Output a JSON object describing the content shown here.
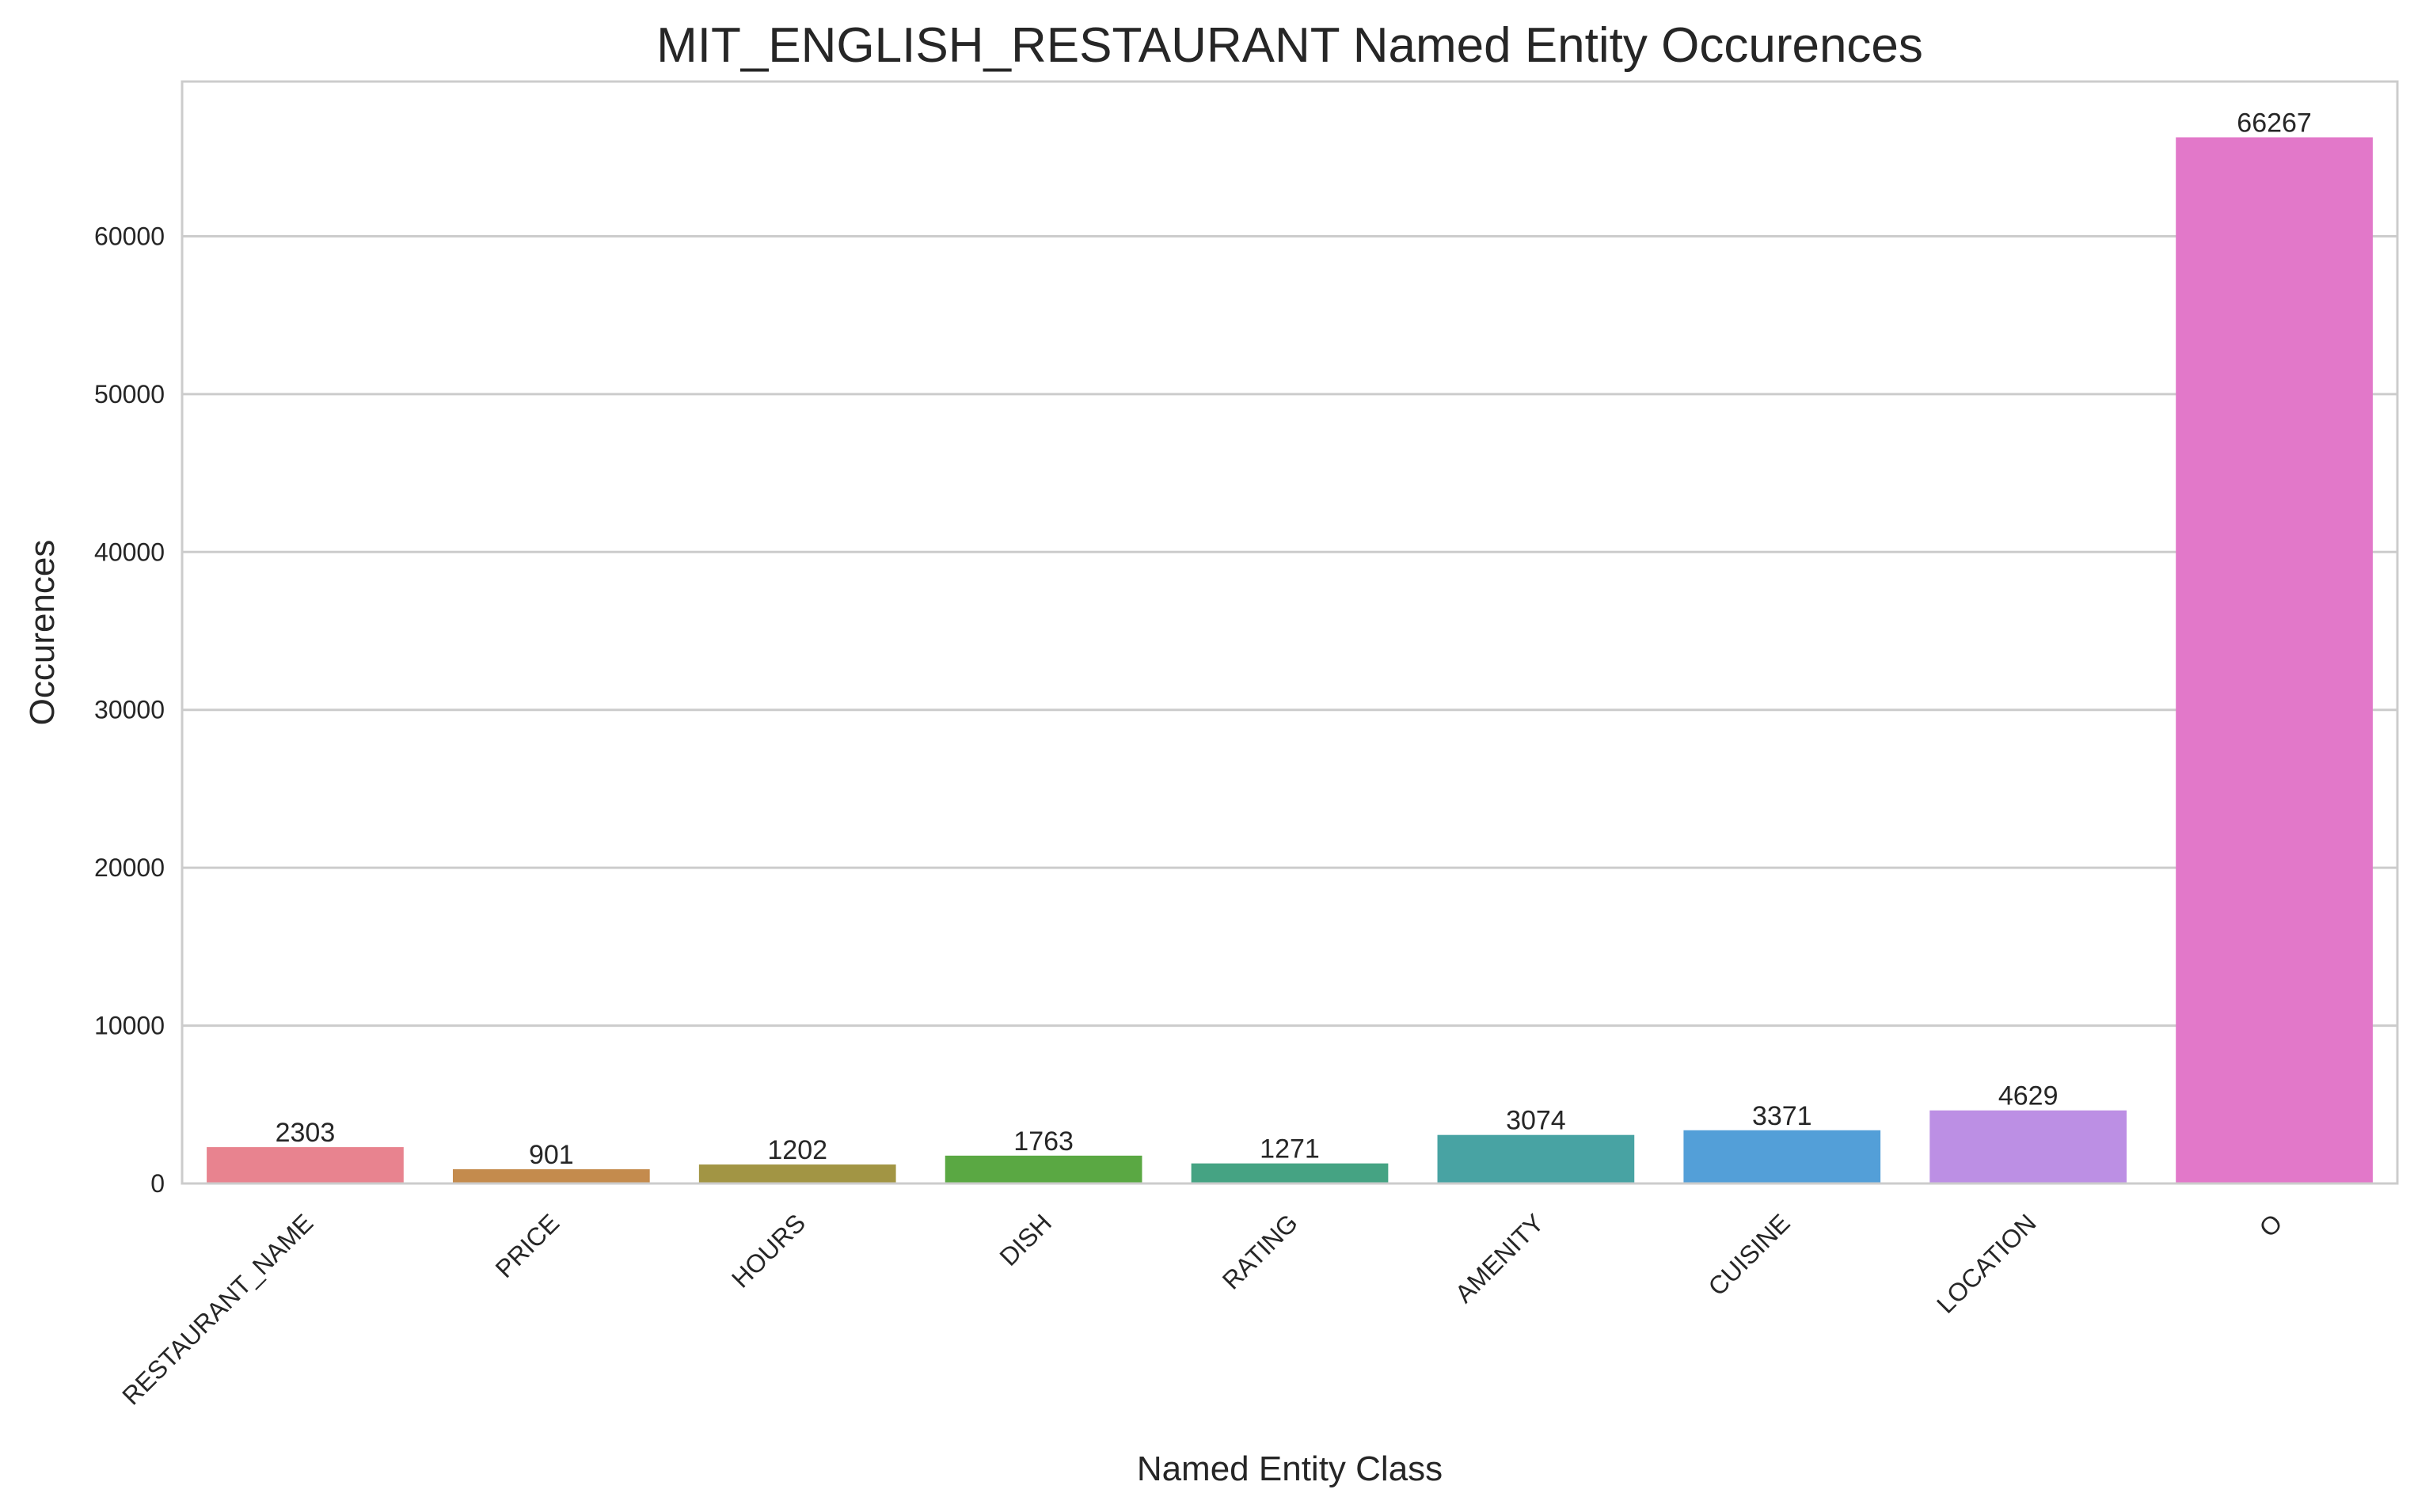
{
  "chart_data": {
    "type": "bar",
    "title": "MIT_ENGLISH_RESTAURANT Named Entity Occurences",
    "xlabel": "Named Entity Class",
    "ylabel": "Occurences",
    "categories": [
      "RESTAURANT_NAME",
      "PRICE",
      "HOURS",
      "DISH",
      "RATING",
      "AMENITY",
      "CUISINE",
      "LOCATION",
      "O"
    ],
    "values": [
      2303,
      901,
      1202,
      1763,
      1271,
      3074,
      3371,
      4629,
      66267
    ],
    "data_labels": [
      "2303",
      "901",
      "1202",
      "1763",
      "1271",
      "3074",
      "3371",
      "4629",
      "66267"
    ],
    "colors": [
      "#e8838f",
      "#c48b4d",
      "#a29544",
      "#5aa843",
      "#45a383",
      "#48a3a3",
      "#539fd8",
      "#bc8fe4",
      "#e278c9"
    ],
    "yticks": [
      "0",
      "10000",
      "20000",
      "30000",
      "40000",
      "50000",
      "60000"
    ],
    "ylim": [
      0,
      69800
    ],
    "grid": true,
    "tick_rotation_deg": -45
  }
}
